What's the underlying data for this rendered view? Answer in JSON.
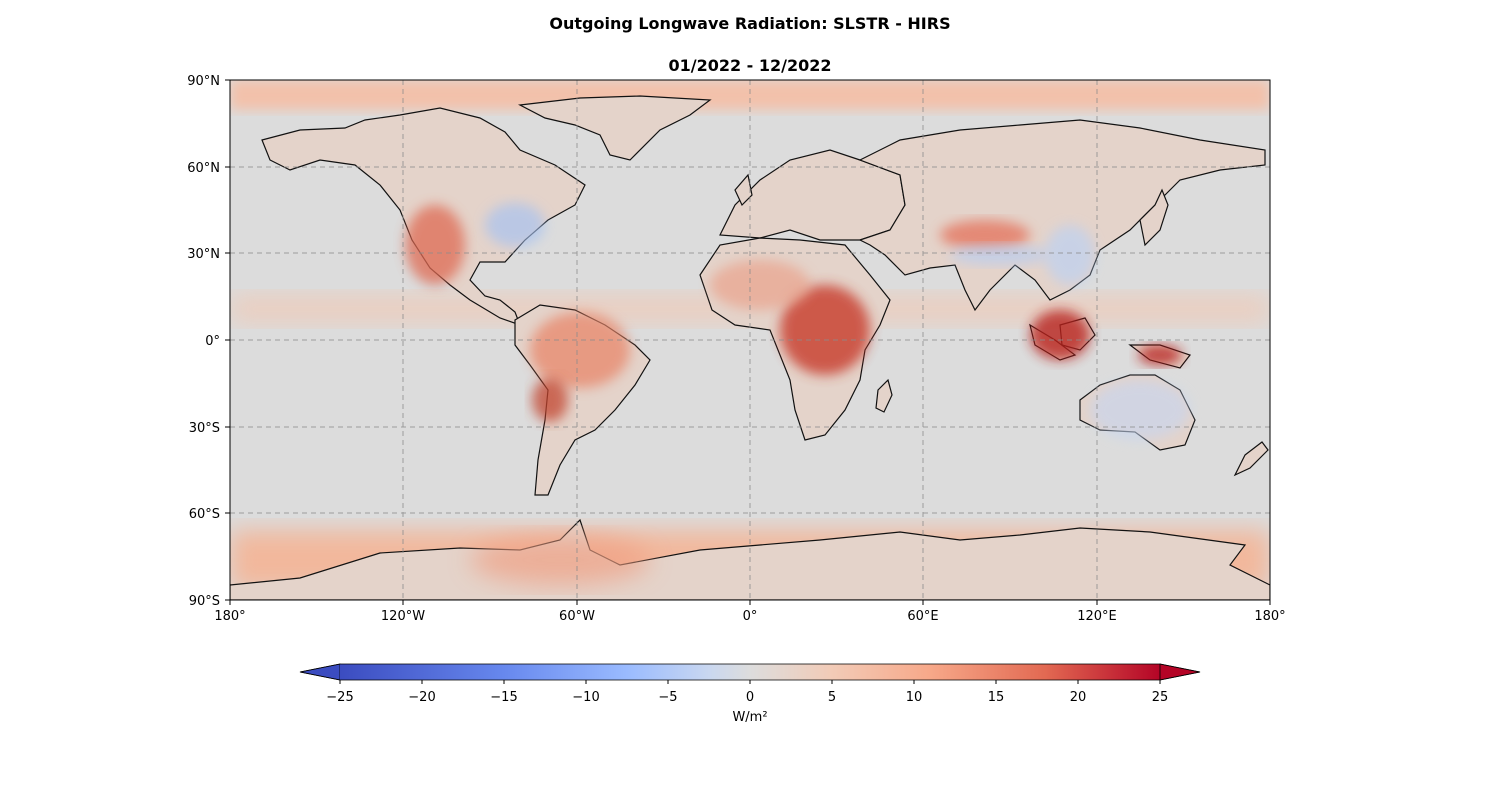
{
  "title": "Outgoing Longwave Radiation: SLSTR - HIRS",
  "subtitle": "01/2022 - 12/2022",
  "map": {
    "projection": "PlateCarree",
    "lon_range": [
      -180,
      180
    ],
    "lat_range": [
      -90,
      90
    ],
    "gridlines": true,
    "coastlines": true,
    "lat_ticks": [
      "90°N",
      "60°N",
      "30°N",
      "0°",
      "30°S",
      "60°S",
      "90°S"
    ],
    "lon_ticks": [
      "180°",
      "120°W",
      "60°W",
      "0°",
      "60°E",
      "120°E",
      "180°"
    ],
    "ocean_color": "#dcdcdc",
    "land_anomalies": [
      {
        "region": "Western USA / Mexico",
        "value": 12
      },
      {
        "region": "Amazon",
        "value": 10
      },
      {
        "region": "Central Africa",
        "value": 20
      },
      {
        "region": "Indonesia",
        "value": 22
      },
      {
        "region": "New Guinea",
        "value": 22
      },
      {
        "region": "Tibet",
        "value": 14
      },
      {
        "region": "Antarctic coast",
        "value": 10
      },
      {
        "region": "Eastern USA",
        "value": -5
      },
      {
        "region": "Eastern Asia",
        "value": -5
      },
      {
        "region": "Australia",
        "value": -4
      }
    ]
  },
  "colorbar": {
    "label": "W/m²",
    "cmap": "coolwarm",
    "min": -25,
    "max": 25,
    "extend": "both",
    "ticks": [
      "−25",
      "−20",
      "−15",
      "−10",
      "−5",
      "0",
      "5",
      "10",
      "15",
      "20",
      "25"
    ],
    "colors": [
      "#3b4cc0",
      "#6788ee",
      "#9abbff",
      "#c9d7f0",
      "#dddddd",
      "#f2cbb7",
      "#f7a889",
      "#e26952",
      "#b40426"
    ]
  }
}
